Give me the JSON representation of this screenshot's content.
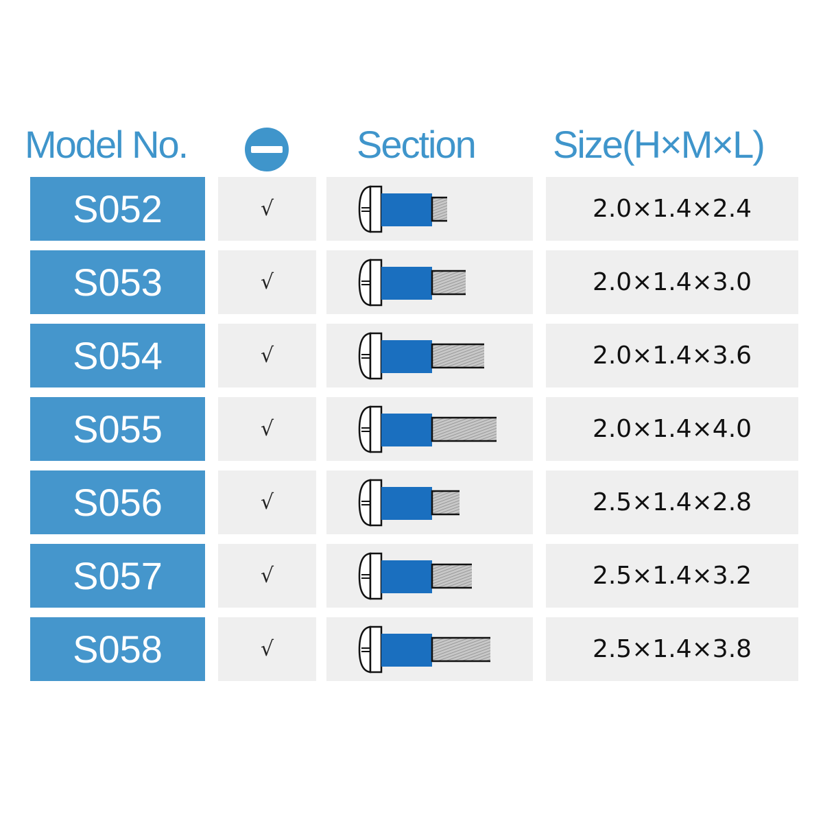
{
  "header": {
    "model": "Model No.",
    "slot_icon": "slotted-screwdriver-icon",
    "section": "Section",
    "size": "Size(H×M×L)"
  },
  "colors": {
    "accent": "#4596cc",
    "screw_body": "#1a6fbf",
    "cell_bg": "#efefef"
  },
  "rows": [
    {
      "model": "S052",
      "check": "√",
      "size": "2.0×1.4×2.4",
      "L": 2.4
    },
    {
      "model": "S053",
      "check": "√",
      "size": "2.0×1.4×3.0",
      "L": 3.0
    },
    {
      "model": "S054",
      "check": "√",
      "size": "2.0×1.4×3.6",
      "L": 3.6
    },
    {
      "model": "S055",
      "check": "√",
      "size": "2.0×1.4×4.0",
      "L": 4.0
    },
    {
      "model": "S056",
      "check": "√",
      "size": "2.5×1.4×2.8",
      "L": 2.8
    },
    {
      "model": "S057",
      "check": "√",
      "size": "2.5×1.4×3.2",
      "L": 3.2
    },
    {
      "model": "S058",
      "check": "√",
      "size": "2.5×1.4×3.8",
      "L": 3.8
    }
  ]
}
